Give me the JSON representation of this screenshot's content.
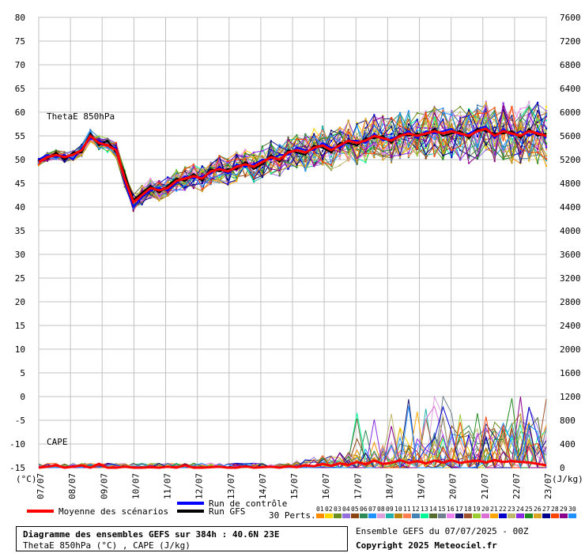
{
  "chart_data": {
    "type": "line",
    "title": "Diagramme des ensembles GEFS sur 384h : 40.6N 23E",
    "subtitle": "ThetaE 850hPa (°C) , CAPE (J/kg)",
    "left_axis": {
      "unit": "(°C)",
      "ticks": [
        80,
        75,
        70,
        65,
        60,
        55,
        50,
        45,
        40,
        35,
        30,
        25,
        20,
        15,
        10,
        5,
        0,
        -5,
        -10,
        -15
      ],
      "range": [
        -15,
        80
      ]
    },
    "right_axis": {
      "unit": "(J/kg)",
      "ticks": [
        7600,
        7200,
        6800,
        6400,
        6000,
        5600,
        5200,
        4800,
        4400,
        4000,
        3600,
        3200,
        2800,
        2400,
        2000,
        1600,
        1200,
        800,
        400,
        0
      ],
      "range": [
        0,
        7600
      ]
    },
    "x_labels": [
      "07/07",
      "08/07",
      "09/07",
      "10/07",
      "11/07",
      "12/07",
      "13/07",
      "14/07",
      "15/07",
      "16/07",
      "17/07",
      "18/07",
      "19/07",
      "20/07",
      "21/07",
      "22/07",
      "23/07"
    ],
    "thetae_label": "ThetaE 850hPa",
    "cape_label": "CAPE",
    "thetae_mean": [
      49.5,
      50.5,
      51,
      50.5,
      51,
      52,
      55,
      53.5,
      53,
      52,
      46,
      41,
      42.5,
      44,
      43.5,
      44,
      45.5,
      46,
      46.5,
      46,
      47.5,
      48,
      47.5,
      48.5,
      49,
      48.5,
      49.5,
      50.5,
      50,
      51.5,
      52,
      51.5,
      52.5,
      53,
      52,
      53,
      54,
      53.5,
      54,
      55,
      54.5,
      54,
      55,
      55.5,
      55,
      55.5,
      56,
      55.5,
      56,
      55.5,
      55,
      56,
      56.5,
      55,
      56,
      55.5,
      55,
      56,
      55.5,
      55
    ],
    "thetae_control": [
      50,
      51,
      50.5,
      51,
      50,
      52.5,
      54.5,
      54,
      53,
      52.5,
      45,
      40,
      42,
      43.5,
      44,
      43.5,
      45,
      46.5,
      46,
      46.5,
      47,
      48.5,
      47,
      49,
      48.5,
      49,
      50,
      50,
      51,
      51,
      52.5,
      52,
      52,
      53.5,
      52.5,
      52.5,
      54,
      54,
      53.5,
      55.5,
      54,
      54.5,
      55,
      56,
      54.5,
      56,
      55.5,
      56,
      56.5,
      55,
      55.5,
      56.5,
      57,
      54.5,
      56.5,
      55,
      56,
      55,
      56,
      54.5
    ],
    "thetae_gfs": [
      49.8,
      50.2,
      51.5,
      50,
      51.5,
      51.5,
      55.5,
      53,
      54,
      51.5,
      47,
      41.5,
      43,
      44.5,
      43,
      44.5,
      46,
      45.5,
      47,
      45.5,
      48,
      47.5,
      48,
      48,
      49.5,
      48,
      49,
      51,
      49.5,
      52,
      51.5,
      51,
      53,
      52.5,
      51.5,
      53.5,
      53.5,
      53,
      54.5,
      54.5,
      55,
      53.5,
      55.5,
      55,
      55.5,
      55,
      56.5,
      55,
      55.5,
      56,
      54.5,
      56.5,
      56,
      55.5,
      55.5,
      56,
      54.5,
      56.5,
      55,
      55.5
    ],
    "cape_mean": [
      -15,
      -14.8,
      -14.5,
      -15,
      -14.8,
      -14.5,
      -15,
      -14.2,
      -15,
      -15,
      -14.8,
      -15,
      -15,
      -14.9,
      -15,
      -14.8,
      -15,
      -14.5,
      -15,
      -15,
      -14.9,
      -14.8,
      -15,
      -15,
      -14.7,
      -15,
      -14.9,
      -14.8,
      -15,
      -14.7,
      -14.9,
      -14.5,
      -14.7,
      -14.2,
      -14.6,
      -14.1,
      -14.4,
      -13.8,
      -14.3,
      -13.5,
      -14.2,
      -14,
      -13.4,
      -14,
      -13.6,
      -14.1,
      -13.5,
      -13.9,
      -13.4,
      -14,
      -13.7,
      -13.5,
      -13.9,
      -13.4,
      -13.8,
      -13.6,
      -13.8,
      -13.9,
      -14.2,
      -14.5
    ],
    "legend": {
      "control": "Run de contrôle",
      "gfs": "Run GFS",
      "mean": "Moyenne des scénarios",
      "perts_label": "30 Perts.",
      "perts": [
        "01",
        "02",
        "03",
        "04",
        "05",
        "06",
        "07",
        "08",
        "09",
        "10",
        "11",
        "12",
        "13",
        "14",
        "15",
        "16",
        "17",
        "18",
        "19",
        "20",
        "21",
        "22",
        "23",
        "24",
        "25",
        "26",
        "27",
        "28",
        "29",
        "30"
      ],
      "pert_colors": [
        "#ff8c00",
        "#ffd700",
        "#6b8e23",
        "#9370db",
        "#8b4513",
        "#2e8b57",
        "#1e90ff",
        "#dda0dd",
        "#20b2aa",
        "#b8860b",
        "#ff7f50",
        "#4682b4",
        "#00fa9a",
        "#556b2f",
        "#708090",
        "#ee82ee",
        "#191970",
        "#a0522d",
        "#9acd32",
        "#da70d6",
        "#ffa500",
        "#0000cd",
        "#bdb76b",
        "#8a2be2",
        "#228b22",
        "#daa520",
        "#00008b",
        "#ff4500",
        "#8b008b",
        "#1e90ff"
      ]
    }
  },
  "footer": {
    "title": "Diagramme des ensembles GEFS sur 384h : 40.6N 23E",
    "subtitle": "ThetaE 850hPa (°C) , CAPE (J/kg)",
    "run": "Ensemble GEFS du 07/07/2025 - 00Z",
    "copyright": "Copyright 2025 Meteociel.fr"
  },
  "colors": {
    "mean": "#ff0000",
    "control": "#0000ff",
    "gfs": "#000000",
    "grid": "#c0c0c0"
  }
}
